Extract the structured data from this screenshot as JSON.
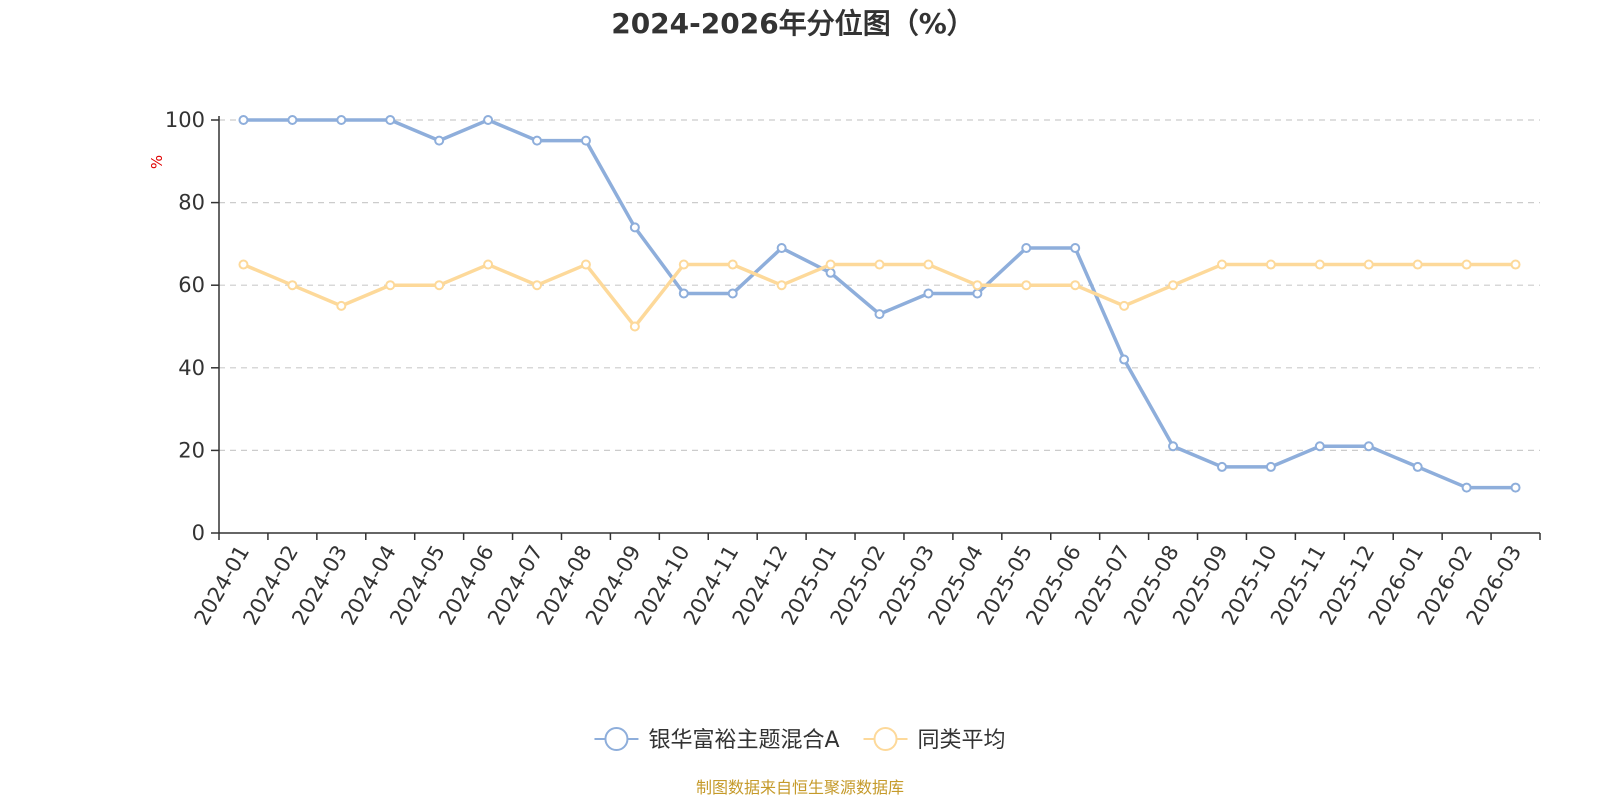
{
  "chart_data": {
    "type": "line",
    "title": "2024-2026年分位图（%）",
    "ylabel": "%",
    "ylim": [
      0,
      100
    ],
    "yticks": [
      "0",
      "20",
      "40",
      "60",
      "80",
      "100"
    ],
    "grid": true,
    "legend_position": "bottom-center",
    "categories": [
      "2024-01",
      "2024-02",
      "2024-03",
      "2024-04",
      "2024-05",
      "2024-06",
      "2024-07",
      "2024-08",
      "2024-09",
      "2024-10",
      "2024-11",
      "2024-12",
      "2025-01",
      "2025-02",
      "2025-03",
      "2025-04",
      "2025-05",
      "2025-06",
      "2025-07",
      "2025-08",
      "2025-09",
      "2025-10",
      "2025-11",
      "2025-12",
      "2026-01",
      "2026-02",
      "2026-03"
    ],
    "series": [
      {
        "name": "银华富裕主题混合A",
        "color": "#8eaedb",
        "values": [
          100,
          100,
          100,
          100,
          95,
          100,
          95,
          95,
          74,
          58,
          58,
          69,
          63,
          53,
          58,
          58,
          69,
          69,
          42,
          21,
          16,
          16,
          21,
          21,
          16,
          11,
          11
        ]
      },
      {
        "name": "同类平均",
        "color": "#fdd99a",
        "values": [
          65,
          60,
          55,
          60,
          60,
          65,
          60,
          65,
          50,
          65,
          65,
          60,
          65,
          65,
          65,
          60,
          60,
          60,
          55,
          60,
          65,
          65,
          65,
          65,
          65,
          65,
          65
        ]
      }
    ],
    "source": "制图数据来自恒生聚源数据库",
    "source_color": "#c59a2a",
    "ylabel_color": "#e00000"
  }
}
